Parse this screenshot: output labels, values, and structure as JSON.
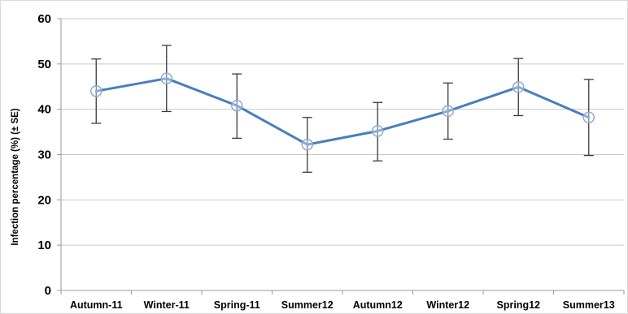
{
  "chart_data": {
    "type": "line",
    "title": "",
    "xlabel": "",
    "ylabel": "Infection percentage (%) (± SE)",
    "ylim": [
      0,
      60
    ],
    "yticks": [
      "0",
      "10",
      "20",
      "30",
      "40",
      "50",
      "60"
    ],
    "grid": "horizontal major gridlines",
    "legend": "none",
    "categories": [
      "Autumn-11",
      "Winter-11",
      "Spring-11",
      "Summer12",
      "Autumn12",
      "Winter12",
      "Spring12",
      "Summer13"
    ],
    "series": [
      {
        "values": [
          44.0,
          46.8,
          40.8,
          32.2,
          35.2,
          39.6,
          44.9,
          38.2
        ],
        "error_low": [
          36.9,
          39.5,
          33.6,
          26.1,
          28.6,
          33.4,
          38.6,
          29.8
        ],
        "error_high": [
          51.1,
          54.1,
          47.8,
          38.2,
          41.5,
          45.8,
          51.2,
          46.6
        ]
      }
    ],
    "colors": {
      "line": "#4a7ebb",
      "marker": "#8eaad8",
      "error_bar": "#3a3a3a",
      "grid": "#c8c8c8",
      "axis": "#9a9a9a"
    }
  }
}
